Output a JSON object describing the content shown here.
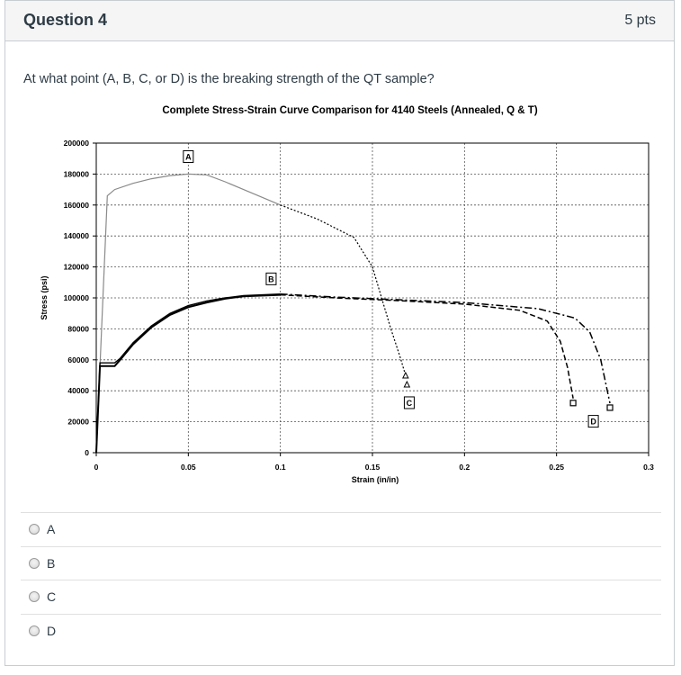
{
  "question": {
    "title": "Question 4",
    "points": "5 pts",
    "text": "At what point (A, B, C, or D) is the breaking strength of the QT sample?"
  },
  "answers": [
    "A",
    "B",
    "C",
    "D"
  ],
  "chart_data": {
    "type": "line",
    "title": "Complete Stress-Strain Curve Comparison for 4140 Steels (Annealed, Q & T)",
    "xlabel": "Strain (in/in)",
    "ylabel": "Stress (psi)",
    "xlim": [
      0,
      0.3
    ],
    "ylim": [
      0,
      200000
    ],
    "x_ticks": [
      "0",
      "0.05",
      "0.1",
      "0.15",
      "0.2",
      "0.25",
      "0.3"
    ],
    "y_ticks": [
      "0",
      "20000",
      "40000",
      "60000",
      "80000",
      "100000",
      "120000",
      "140000",
      "160000",
      "180000",
      "200000"
    ],
    "grid": true,
    "series": [
      {
        "x": [
          0,
          0.006,
          0.01,
          0.02,
          0.03,
          0.04,
          0.05,
          0.06,
          0.07,
          0.08,
          0.09,
          0.1,
          0.12,
          0.14,
          0.15,
          0.155,
          0.16,
          0.165,
          0.168
        ],
        "y": [
          0,
          166000,
          170000,
          174000,
          177000,
          179000,
          180000,
          179500,
          175000,
          170000,
          165000,
          160000,
          151000,
          139000,
          120000,
          100000,
          80000,
          62000,
          50000
        ]
      },
      {
        "x": [
          0,
          0.002,
          0.01,
          0.013,
          0.02,
          0.03,
          0.04,
          0.05,
          0.06,
          0.07,
          0.08,
          0.1,
          0.13,
          0.16,
          0.2,
          0.23,
          0.245,
          0.252,
          0.256,
          0.259
        ],
        "y": [
          0,
          56000,
          56000,
          60000,
          70000,
          81000,
          89000,
          94000,
          97000,
          99500,
          101000,
          102000,
          100000,
          98500,
          96000,
          92000,
          85000,
          72000,
          55000,
          35000
        ]
      },
      {
        "x": [
          0,
          0.002,
          0.01,
          0.013,
          0.02,
          0.03,
          0.04,
          0.05,
          0.06,
          0.07,
          0.08,
          0.1,
          0.13,
          0.16,
          0.2,
          0.24,
          0.26,
          0.268,
          0.274,
          0.279
        ],
        "y": [
          0,
          58000,
          58000,
          61000,
          71000,
          82000,
          90000,
          95000,
          98000,
          100000,
          101500,
          102500,
          100500,
          99000,
          97000,
          93000,
          87000,
          78000,
          60000,
          32000
        ]
      }
    ],
    "annotations": [
      {
        "label": "A",
        "x": 0.05,
        "y": 191000
      },
      {
        "label": "B",
        "x": 0.095,
        "y": 112000
      },
      {
        "label": "C",
        "x": 0.17,
        "y": 32000
      },
      {
        "label": "D",
        "x": 0.27,
        "y": 20000
      }
    ]
  }
}
